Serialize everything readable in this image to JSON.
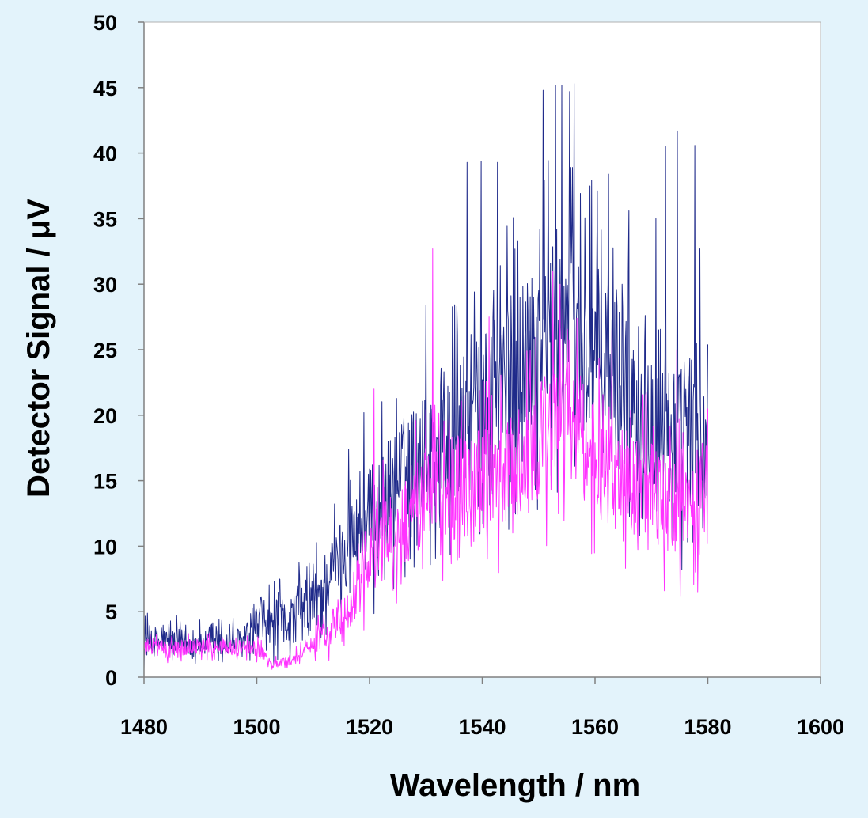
{
  "chart_data": {
    "type": "line",
    "title": "",
    "xlabel": "Wavelength / nm",
    "ylabel": "Detector Signal / μV",
    "xlim": [
      1480,
      1600
    ],
    "ylim": [
      0,
      50
    ],
    "x_ticks": [
      "1480",
      "1500",
      "1520",
      "1540",
      "1560",
      "1580",
      "1600"
    ],
    "y_ticks": [
      "0",
      "5",
      "10",
      "15",
      "20",
      "25",
      "30",
      "35",
      "40",
      "45",
      "50"
    ],
    "grid": false,
    "legend": "none",
    "background_color": "#e3f3fb",
    "plot_area_color": "#ffffff",
    "x_step": 0.1,
    "series": [
      {
        "color": "#1f2a8a",
        "x_start": 1480,
        "x_end": 1580,
        "envelope": [
          [
            1480,
            2.8,
            1.2
          ],
          [
            1490,
            2.5,
            1.0
          ],
          [
            1499,
            2.7,
            1.2
          ],
          [
            1500,
            4.0,
            1.8
          ],
          [
            1505,
            4.2,
            1.8
          ],
          [
            1510,
            5.5,
            2.5
          ],
          [
            1515,
            9.5,
            2.8
          ],
          [
            1520,
            12.0,
            4.0
          ],
          [
            1525,
            15.0,
            4.5
          ],
          [
            1530,
            17.0,
            4.5
          ],
          [
            1535,
            18.5,
            5.5
          ],
          [
            1540,
            20.5,
            6.0
          ],
          [
            1545,
            23.0,
            6.5
          ],
          [
            1550,
            26.0,
            7.0
          ],
          [
            1555,
            27.5,
            7.5
          ],
          [
            1560,
            24.5,
            7.0
          ],
          [
            1565,
            22.0,
            6.5
          ],
          [
            1570,
            20.0,
            6.0
          ],
          [
            1575,
            18.5,
            5.5
          ],
          [
            1580,
            17.0,
            5.0
          ]
        ],
        "peaks": [
          [
            1516.3,
            17.4
          ],
          [
            1519.0,
            20.2
          ],
          [
            1530.0,
            28.4
          ],
          [
            1537.3,
            39.3
          ],
          [
            1539.8,
            39.4
          ],
          [
            1542.7,
            39.3
          ],
          [
            1550.8,
            44.8
          ],
          [
            1553.0,
            45.2
          ],
          [
            1554.1,
            45.2
          ],
          [
            1555.5,
            44.7
          ],
          [
            1556.3,
            45.3
          ],
          [
            1559.1,
            37.5
          ],
          [
            1562.4,
            38.4
          ],
          [
            1566.0,
            35.6
          ],
          [
            1570.8,
            35.0
          ],
          [
            1572.5,
            40.5
          ],
          [
            1574.6,
            41.7
          ],
          [
            1577.7,
            40.6
          ],
          [
            1578.6,
            32.7
          ],
          [
            1580.0,
            25.4
          ]
        ]
      },
      {
        "color": "#ff33ff",
        "x_start": 1480,
        "x_end": 1580,
        "envelope": [
          [
            1480,
            2.2,
            0.6
          ],
          [
            1490,
            2.3,
            0.6
          ],
          [
            1500,
            2.2,
            0.6
          ],
          [
            1503,
            1.0,
            0.3
          ],
          [
            1506,
            1.3,
            0.4
          ],
          [
            1509,
            2.2,
            0.6
          ],
          [
            1513,
            3.8,
            1.5
          ],
          [
            1517,
            6.0,
            2.0
          ],
          [
            1520,
            9.5,
            3.0
          ],
          [
            1525,
            11.5,
            3.5
          ],
          [
            1530,
            13.5,
            4.0
          ],
          [
            1535,
            14.5,
            4.0
          ],
          [
            1540,
            15.0,
            4.0
          ],
          [
            1545,
            16.0,
            4.0
          ],
          [
            1550,
            18.0,
            4.5
          ],
          [
            1555,
            19.5,
            5.0
          ],
          [
            1560,
            16.5,
            4.5
          ],
          [
            1565,
            15.0,
            4.0
          ],
          [
            1570,
            14.0,
            4.0
          ],
          [
            1575,
            13.0,
            4.0
          ],
          [
            1580,
            14.0,
            4.0
          ]
        ],
        "peaks": [
          [
            1520.8,
            22.0
          ],
          [
            1531.2,
            32.7
          ],
          [
            1541.2,
            27.5
          ],
          [
            1552.5,
            31.0
          ],
          [
            1553.8,
            30.0
          ],
          [
            1563.0,
            26.5
          ],
          [
            1574.5,
            25.0
          ],
          [
            1580.0,
            20.5
          ]
        ]
      }
    ]
  }
}
